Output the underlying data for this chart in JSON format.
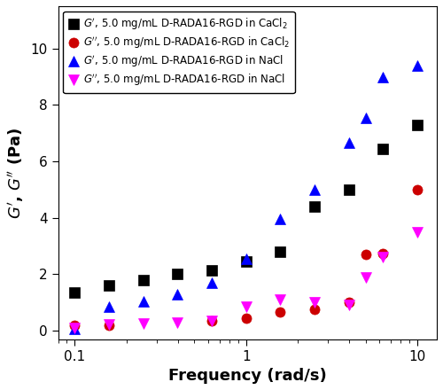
{
  "series": [
    {
      "label": "$\\mathit{G}'$, 5.0 mg/mL D-RADA16-RGD in CaCl$_2$",
      "color": "black",
      "marker": "s",
      "x": [
        0.1,
        0.158,
        0.251,
        0.398,
        0.631,
        1.0,
        1.585,
        2.512,
        3.981,
        6.31,
        10.0
      ],
      "y": [
        1.35,
        1.6,
        1.8,
        2.0,
        2.15,
        2.45,
        2.8,
        4.4,
        5.0,
        6.45,
        7.3
      ]
    },
    {
      "label": "$\\mathit{G}''$, 5.0 mg/mL D-RADA16-RGD in CaCl$_2$",
      "color": "#cc0000",
      "marker": "o",
      "x": [
        0.1,
        0.158,
        0.631,
        1.0,
        1.585,
        2.512,
        3.981,
        5.012,
        6.31,
        10.0
      ],
      "y": [
        0.2,
        0.2,
        0.35,
        0.45,
        0.65,
        0.75,
        1.0,
        2.7,
        2.75,
        5.0
      ]
    },
    {
      "label": "$\\mathit{G}'$, 5.0 mg/mL D-RADA16-RGD in NaCl",
      "color": "blue",
      "marker": "^",
      "x": [
        0.1,
        0.158,
        0.251,
        0.398,
        0.631,
        1.0,
        1.585,
        2.512,
        3.981,
        5.012,
        6.31,
        10.0
      ],
      "y": [
        0.08,
        0.85,
        1.05,
        1.3,
        1.7,
        2.55,
        3.95,
        5.0,
        6.65,
        7.55,
        9.0,
        9.4
      ]
    },
    {
      "label": "$\\mathit{G}''$, 5.0 mg/mL D-RADA16-RGD in NaCl",
      "color": "#ff00ff",
      "marker": "v",
      "x": [
        0.1,
        0.158,
        0.251,
        0.398,
        0.631,
        1.0,
        1.585,
        2.512,
        3.981,
        5.012,
        6.31,
        10.0
      ],
      "y": [
        0.1,
        0.22,
        0.25,
        0.3,
        0.35,
        0.85,
        1.1,
        1.0,
        0.9,
        1.9,
        2.6,
        3.5
      ]
    }
  ],
  "xlabel": "Frequency (rad/s)",
  "ylabel": "$\\mathit{G}'$, $\\mathit{G}''$ (Pa)",
  "xlim": [
    0.08,
    13
  ],
  "ylim": [
    -0.3,
    11.5
  ],
  "yticks": [
    0,
    2,
    4,
    6,
    8,
    10
  ],
  "xticks": [
    0.1,
    1,
    10
  ],
  "xticklabels": [
    "0.1",
    "1",
    "10"
  ],
  "marker_size": 8,
  "legend_fontsize": 8.5,
  "axis_fontsize": 13,
  "tick_fontsize": 11,
  "figsize": [
    5.0,
    4.4
  ],
  "dpi": 100
}
